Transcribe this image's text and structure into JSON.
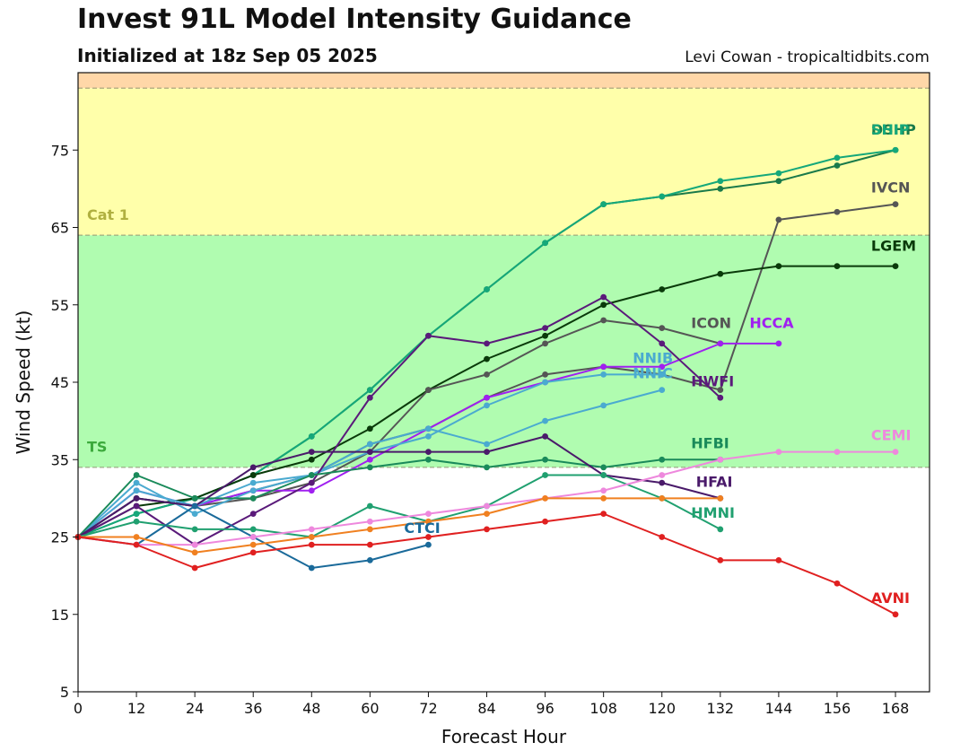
{
  "header": {
    "title": "Invest 91L Model Intensity Guidance",
    "subtitle": "Initialized at 18z Sep 05 2025",
    "credit": "Levi Cowan - tropicaltidbits.com"
  },
  "chart_data": {
    "type": "line",
    "xlabel": "Forecast Hour",
    "ylabel": "Wind Speed (kt)",
    "xlim": [
      0,
      175
    ],
    "ylim": [
      5,
      85
    ],
    "xticks": [
      0,
      12,
      24,
      36,
      48,
      60,
      72,
      84,
      96,
      108,
      120,
      132,
      144,
      156,
      168
    ],
    "yticks": [
      5,
      15,
      25,
      35,
      45,
      55,
      65,
      75
    ],
    "grid": false,
    "bands": [
      {
        "from": 5,
        "to": 34,
        "color": "#ffffff",
        "label": ""
      },
      {
        "from": 34,
        "to": 64,
        "color": "#b0fcb0",
        "label": "TS",
        "label_color": "#3caa3c",
        "label_at": 36
      },
      {
        "from": 64,
        "to": 83,
        "color": "#ffffaa",
        "label": "Cat 1",
        "label_color": "#b0b040",
        "label_at": 66
      },
      {
        "from": 83,
        "to": 85,
        "color": "#ffd7a8",
        "label": ""
      }
    ],
    "series": [
      {
        "name": "DSHP",
        "color": "#1a7a4a",
        "x": [
          0,
          12,
          24,
          36,
          48,
          60,
          72,
          84,
          96,
          108,
          120,
          132,
          144,
          156,
          168
        ],
        "y": [
          25,
          28,
          30,
          33,
          38,
          44,
          51,
          57,
          63,
          68,
          69,
          70,
          71,
          73,
          75
        ],
        "label_x": 163,
        "label_y": 77
      },
      {
        "name": "SHIP",
        "color": "#15a87a",
        "x": [
          0,
          12,
          24,
          36,
          48,
          60,
          72,
          84,
          96,
          108,
          120,
          132,
          144,
          156,
          168
        ],
        "y": [
          25,
          28,
          30,
          33,
          38,
          44,
          51,
          57,
          63,
          68,
          69,
          71,
          72,
          74,
          75
        ],
        "label_x": 163,
        "label_y": 77
      },
      {
        "name": "IVCN",
        "color": "#555555",
        "x": [
          0,
          12,
          24,
          36,
          48,
          60,
          72,
          84,
          96,
          108,
          120,
          132,
          144,
          156,
          168
        ],
        "y": [
          25,
          30,
          29,
          31,
          33,
          37,
          39,
          43,
          46,
          47,
          46,
          44,
          66,
          67,
          68
        ],
        "label_x": 163,
        "label_y": 69.5
      },
      {
        "name": "LGEM",
        "color": "#0a3a0a",
        "x": [
          0,
          12,
          24,
          36,
          48,
          60,
          72,
          84,
          96,
          108,
          120,
          132,
          144,
          156,
          168
        ],
        "y": [
          25,
          29,
          30,
          33,
          35,
          39,
          44,
          48,
          51,
          55,
          57,
          59,
          60,
          60,
          60
        ],
        "label_x": 163,
        "label_y": 62
      },
      {
        "name": "ICON",
        "color": "#555555",
        "x": [
          0,
          12,
          24,
          36,
          48,
          60,
          72,
          84,
          96,
          108,
          120,
          132
        ],
        "y": [
          25,
          30,
          29,
          30,
          32,
          36,
          44,
          46,
          50,
          53,
          52,
          50
        ],
        "label_x": 126,
        "label_y": 52
      },
      {
        "name": "HCCA",
        "color": "#a020f0",
        "x": [
          0,
          12,
          24,
          36,
          48,
          60,
          72,
          84,
          96,
          108,
          120,
          132,
          144
        ],
        "y": [
          25,
          31,
          29,
          31,
          31,
          35,
          39,
          43,
          45,
          47,
          47,
          50,
          50
        ],
        "label_x": 138,
        "label_y": 52
      },
      {
        "name": "NNIB",
        "color": "#4aaad0",
        "x": [
          0,
          12,
          24,
          36,
          48,
          60,
          72,
          84,
          96,
          108,
          120
        ],
        "y": [
          25,
          32,
          28,
          31,
          33,
          36,
          38,
          42,
          45,
          46,
          46
        ],
        "label_x": 114,
        "label_y": 47.5
      },
      {
        "name": "NNIC",
        "color": "#4aaad0",
        "x": [
          0,
          12,
          24,
          36,
          48,
          60,
          72,
          84,
          96,
          108,
          120
        ],
        "y": [
          25,
          31,
          29,
          32,
          33,
          37,
          39,
          37,
          40,
          42,
          44
        ],
        "label_x": 114,
        "label_y": 45.5
      },
      {
        "name": "HWFI",
        "color": "#5a1a7a",
        "x": [
          0,
          12,
          24,
          36,
          48,
          60,
          72,
          84,
          96,
          108,
          120,
          132
        ],
        "y": [
          25,
          29,
          24,
          28,
          32,
          43,
          51,
          50,
          52,
          56,
          50,
          43
        ],
        "label_x": 126,
        "label_y": 44.5
      },
      {
        "name": "HFBI",
        "color": "#1a8a5a",
        "x": [
          0,
          12,
          24,
          36,
          48,
          60,
          72,
          84,
          96,
          108,
          120,
          132
        ],
        "y": [
          25,
          33,
          30,
          30,
          33,
          34,
          35,
          34,
          35,
          34,
          35,
          35
        ],
        "label_x": 126,
        "label_y": 36.5
      },
      {
        "name": "HFAI",
        "color": "#4a1a6a",
        "x": [
          0,
          12,
          24,
          36,
          48,
          60,
          72,
          84,
          96,
          108,
          120,
          132
        ],
        "y": [
          25,
          30,
          29,
          34,
          36,
          36,
          36,
          36,
          38,
          33,
          32,
          30
        ],
        "label_x": 127,
        "label_y": 31.5
      },
      {
        "name": "HMNI",
        "color": "#20a070",
        "x": [
          0,
          12,
          24,
          36,
          48,
          60,
          72,
          84,
          96,
          108,
          120,
          132
        ],
        "y": [
          25,
          27,
          26,
          26,
          25,
          29,
          27,
          29,
          33,
          33,
          30,
          26
        ],
        "label_x": 126,
        "label_y": 27.5
      },
      {
        "name": "CTCI",
        "color": "#1a6a9a",
        "x": [
          0,
          12,
          24,
          36,
          48,
          60,
          72
        ],
        "y": [
          25,
          24,
          29,
          25,
          21,
          22,
          24
        ],
        "label_x": 67,
        "label_y": 25.5
      },
      {
        "name": "CEMI",
        "color": "#ee88dd",
        "x": [
          0,
          12,
          24,
          36,
          48,
          60,
          72,
          84,
          96,
          108,
          120,
          132,
          144,
          156,
          168
        ],
        "y": [
          25,
          24,
          24,
          25,
          26,
          27,
          28,
          29,
          30,
          31,
          33,
          35,
          36,
          36,
          36
        ],
        "label_x": 163,
        "label_y": 37.5
      },
      {
        "name": "",
        "color": "#f08020",
        "x": [
          0,
          12,
          24,
          36,
          48,
          60,
          72,
          84,
          96,
          108,
          120,
          132
        ],
        "y": [
          25,
          25,
          23,
          24,
          25,
          26,
          27,
          28,
          30,
          30,
          30,
          30
        ]
      },
      {
        "name": "AVNI",
        "color": "#e02020",
        "x": [
          0,
          12,
          24,
          36,
          48,
          60,
          72,
          84,
          96,
          108,
          120,
          132,
          144,
          156,
          168
        ],
        "y": [
          25,
          24,
          21,
          23,
          24,
          24,
          25,
          26,
          27,
          28,
          25,
          22,
          22,
          19,
          15
        ],
        "label_x": 163,
        "label_y": 16.5
      }
    ]
  }
}
